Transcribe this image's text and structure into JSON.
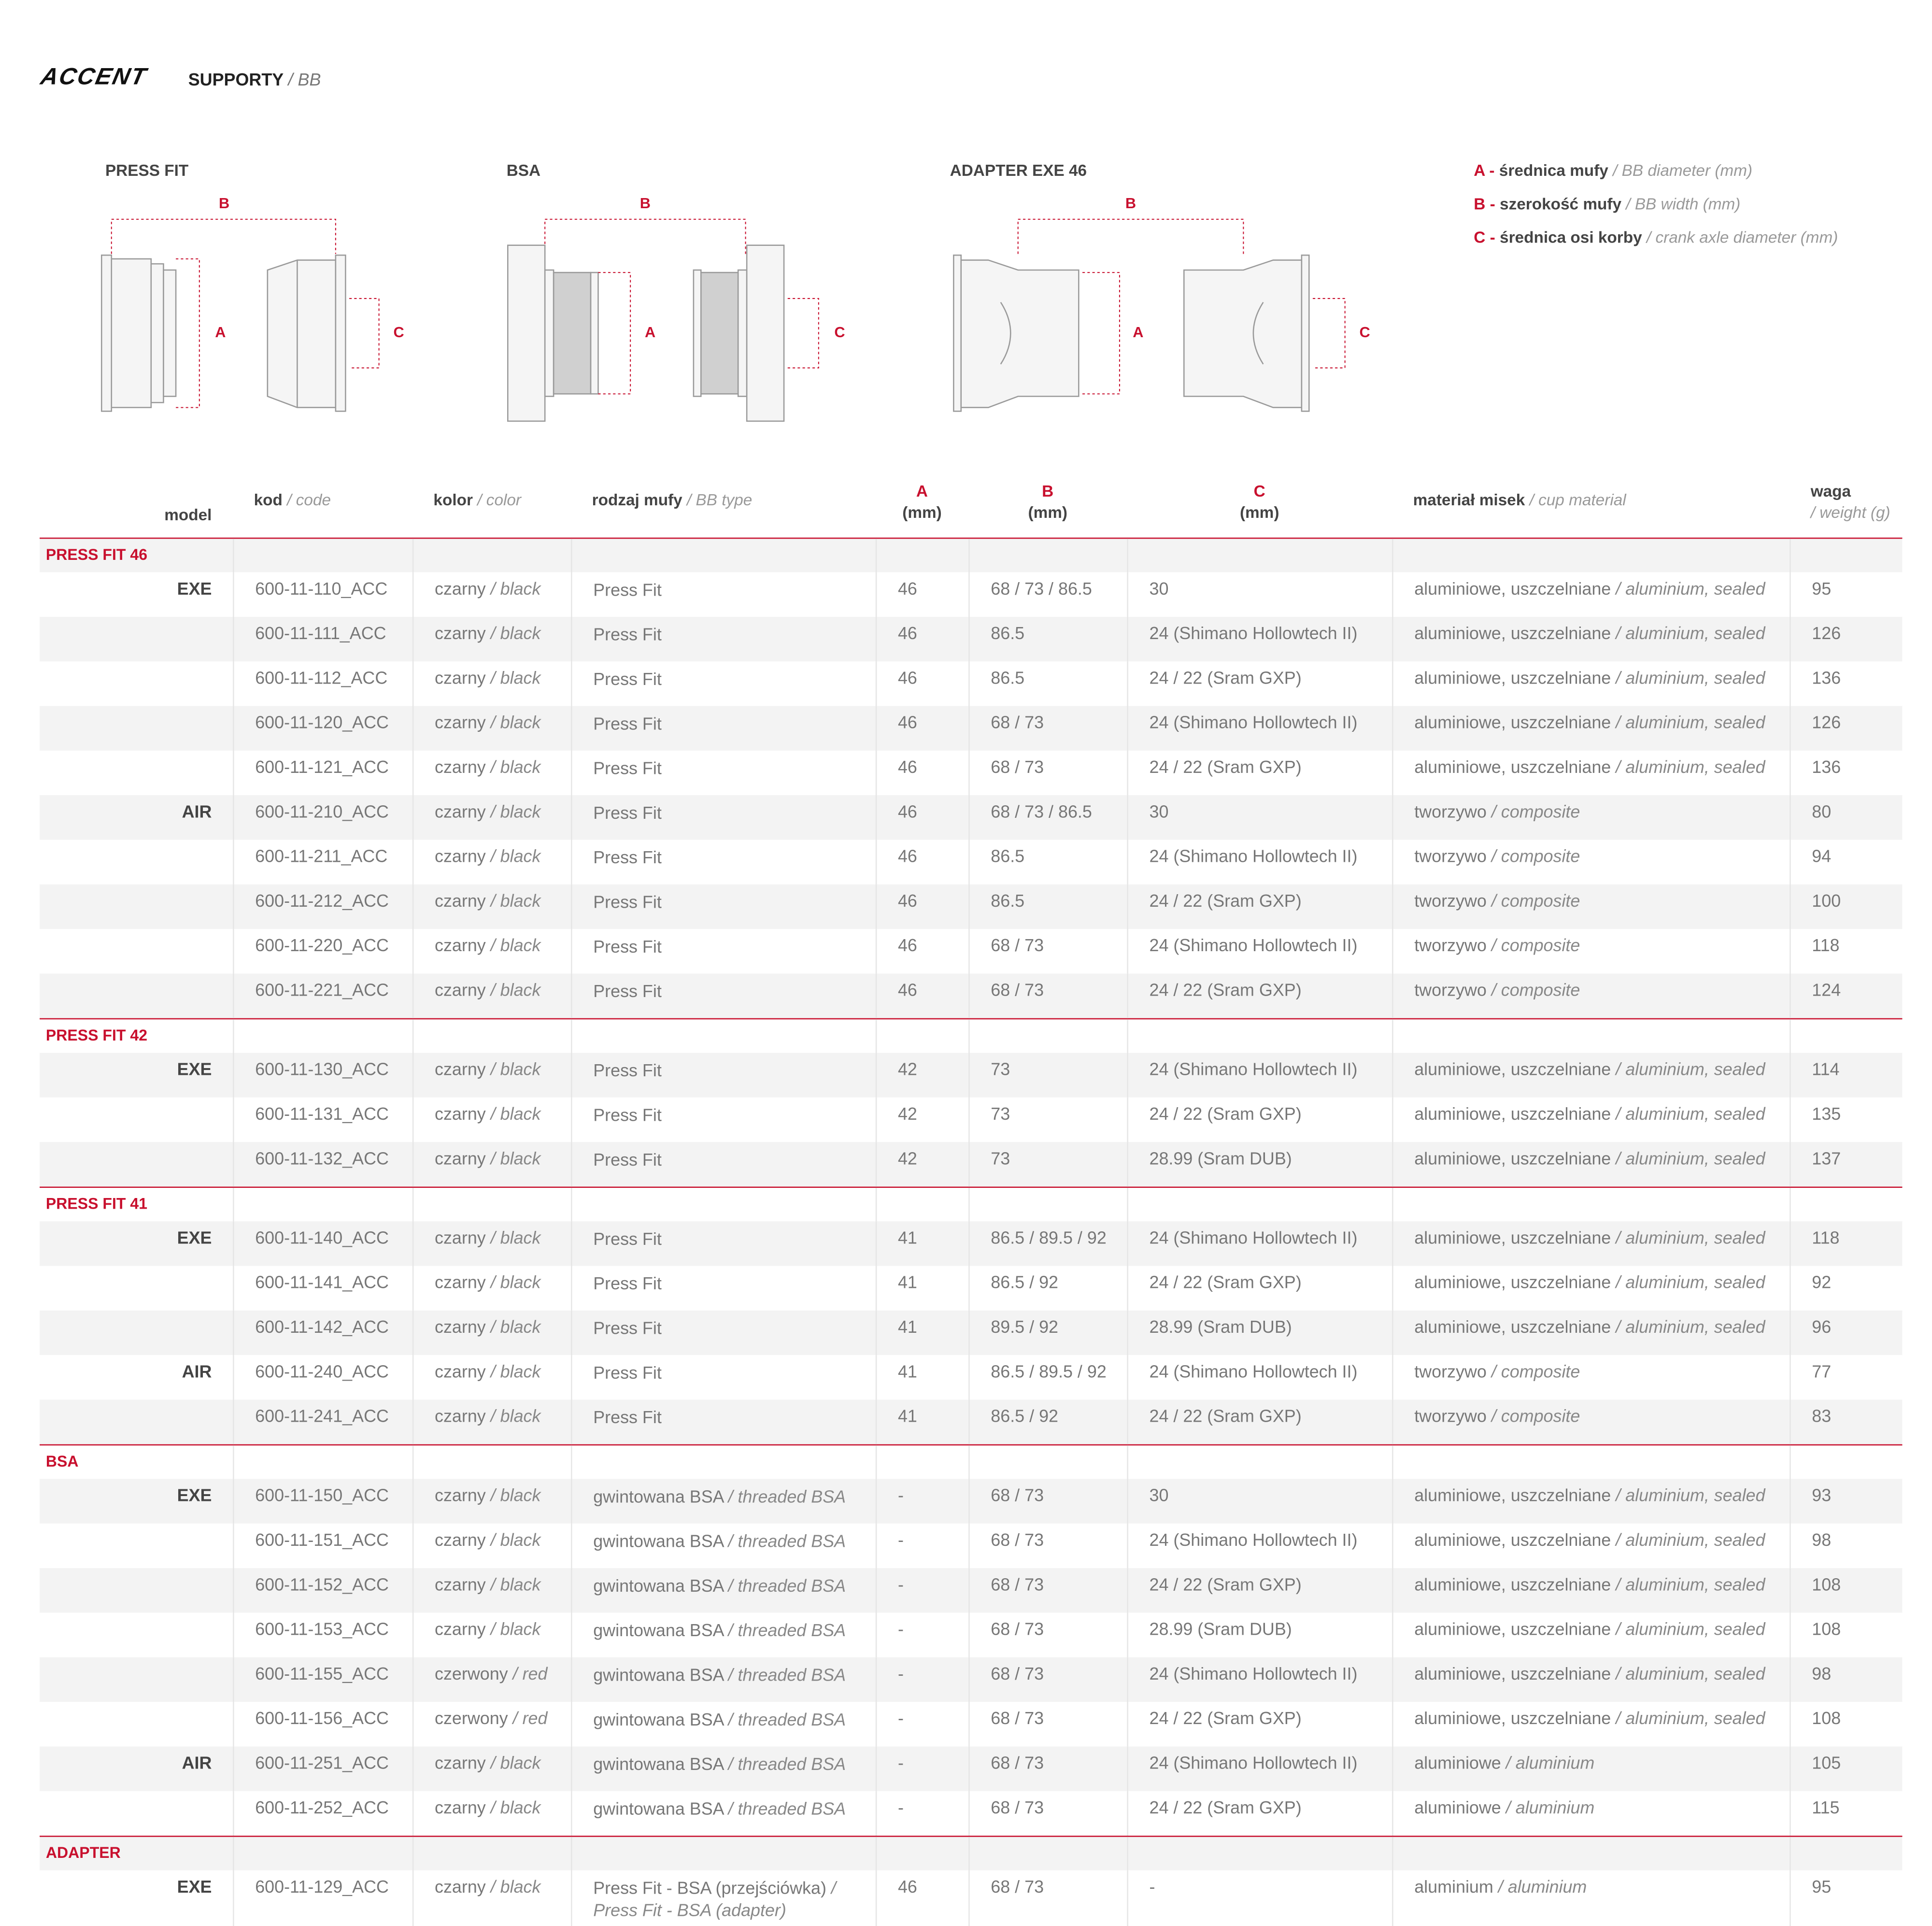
{
  "header": {
    "brand": "ACCENT",
    "title": "SUPPORTY",
    "subtitle": "/ BB"
  },
  "diagrams": [
    {
      "title": "PRESS FIT",
      "b": "B",
      "a": "A",
      "c": "C"
    },
    {
      "title": "BSA",
      "b": "B",
      "a": "A",
      "c": "C"
    },
    {
      "title": "ADAPTER EXE 46",
      "b": "B",
      "a": "A",
      "c": "C"
    }
  ],
  "legend": [
    {
      "key": "A -",
      "pl": "średnica mufy",
      "en": "/ BB diameter (mm)"
    },
    {
      "key": "B -",
      "pl": "szerokość mufy",
      "en": "/ BB width (mm)"
    },
    {
      "key": "C -",
      "pl": "średnica osi korby",
      "en": "/ crank axle diameter (mm)"
    }
  ],
  "table": {
    "columns": [
      {
        "pl": "model"
      },
      {
        "pl": "kod",
        "en": "/ code"
      },
      {
        "pl": "kolor",
        "en": "/ color"
      },
      {
        "pl": "rodzaj mufy",
        "en": "/ BB type"
      },
      {
        "key": "A",
        "unit": "(mm)"
      },
      {
        "key": "B",
        "unit": "(mm)"
      },
      {
        "key": "C",
        "unit": "(mm)"
      },
      {
        "pl": "materiał misek",
        "en": "/ cup material"
      },
      {
        "pl": "waga",
        "en": "/ weight (g)"
      }
    ],
    "sections": [
      {
        "name": "PRESS FIT 46",
        "groups": [
          {
            "model": "EXE",
            "rows": [
              [
                "600-11-110_ACC",
                "czarny",
                "/ black",
                "Press Fit",
                null,
                "46",
                "68 / 73 / 86.5",
                "30",
                "aluminiowe, uszczelniane",
                "/ aluminium, sealed",
                "95"
              ],
              [
                "600-11-111_ACC",
                "czarny",
                "/ black",
                "Press Fit",
                null,
                "46",
                "86.5",
                "24 (Shimano Hollowtech II)",
                "aluminiowe, uszczelniane",
                "/ aluminium, sealed",
                "126"
              ],
              [
                "600-11-112_ACC",
                "czarny",
                "/ black",
                "Press Fit",
                null,
                "46",
                "86.5",
                "24 / 22 (Sram GXP)",
                "aluminiowe, uszczelniane",
                "/ aluminium, sealed",
                "136"
              ],
              [
                "600-11-120_ACC",
                "czarny",
                "/ black",
                "Press Fit",
                null,
                "46",
                "68 / 73",
                "24 (Shimano Hollowtech II)",
                "aluminiowe, uszczelniane",
                "/ aluminium, sealed",
                "126"
              ],
              [
                "600-11-121_ACC",
                "czarny",
                "/ black",
                "Press Fit",
                null,
                "46",
                "68 / 73",
                "24 / 22 (Sram GXP)",
                "aluminiowe, uszczelniane",
                "/ aluminium, sealed",
                "136"
              ]
            ]
          },
          {
            "model": "AIR",
            "rows": [
              [
                "600-11-210_ACC",
                "czarny",
                "/ black",
                "Press Fit",
                null,
                "46",
                "68 / 73 / 86.5",
                "30",
                "tworzywo",
                "/ composite",
                "80"
              ],
              [
                "600-11-211_ACC",
                "czarny",
                "/ black",
                "Press Fit",
                null,
                "46",
                "86.5",
                "24 (Shimano Hollowtech II)",
                "tworzywo",
                "/ composite",
                "94"
              ],
              [
                "600-11-212_ACC",
                "czarny",
                "/ black",
                "Press Fit",
                null,
                "46",
                "86.5",
                "24 / 22 (Sram GXP)",
                "tworzywo",
                "/ composite",
                "100"
              ],
              [
                "600-11-220_ACC",
                "czarny",
                "/ black",
                "Press Fit",
                null,
                "46",
                "68 / 73",
                "24 (Shimano Hollowtech II)",
                "tworzywo",
                "/ composite",
                "118"
              ],
              [
                "600-11-221_ACC",
                "czarny",
                "/ black",
                "Press Fit",
                null,
                "46",
                "68 / 73",
                "24 / 22 (Sram GXP)",
                "tworzywo",
                "/ composite",
                "124"
              ]
            ]
          }
        ]
      },
      {
        "name": "PRESS FIT 42",
        "groups": [
          {
            "model": "EXE",
            "rows": [
              [
                "600-11-130_ACC",
                "czarny",
                "/ black",
                "Press Fit",
                null,
                "42",
                "73",
                "24 (Shimano Hollowtech II)",
                "aluminiowe, uszczelniane",
                "/ aluminium, sealed",
                "114"
              ],
              [
                "600-11-131_ACC",
                "czarny",
                "/ black",
                "Press Fit",
                null,
                "42",
                "73",
                "24 / 22 (Sram GXP)",
                "aluminiowe, uszczelniane",
                "/ aluminium, sealed",
                "135"
              ],
              [
                "600-11-132_ACC",
                "czarny",
                "/ black",
                "Press Fit",
                null,
                "42",
                "73",
                "28.99 (Sram DUB)",
                "aluminiowe, uszczelniane",
                "/ aluminium, sealed",
                "137"
              ]
            ]
          }
        ]
      },
      {
        "name": "PRESS FIT 41",
        "groups": [
          {
            "model": "EXE",
            "rows": [
              [
                "600-11-140_ACC",
                "czarny",
                "/ black",
                "Press Fit",
                null,
                "41",
                "86.5 / 89.5 / 92",
                "24 (Shimano Hollowtech II)",
                "aluminiowe, uszczelniane",
                "/ aluminium, sealed",
                "118"
              ],
              [
                "600-11-141_ACC",
                "czarny",
                "/ black",
                "Press Fit",
                null,
                "41",
                "86.5 / 92",
                "24 / 22 (Sram GXP)",
                "aluminiowe, uszczelniane",
                "/ aluminium, sealed",
                "92"
              ],
              [
                "600-11-142_ACC",
                "czarny",
                "/ black",
                "Press Fit",
                null,
                "41",
                "89.5 / 92",
                "28.99 (Sram DUB)",
                "aluminiowe, uszczelniane",
                "/ aluminium, sealed",
                "96"
              ]
            ]
          },
          {
            "model": "AIR",
            "rows": [
              [
                "600-11-240_ACC",
                "czarny",
                "/ black",
                "Press Fit",
                null,
                "41",
                "86.5 / 89.5 / 92",
                "24 (Shimano Hollowtech II)",
                "tworzywo",
                "/ composite",
                "77"
              ],
              [
                "600-11-241_ACC",
                "czarny",
                "/ black",
                "Press Fit",
                null,
                "41",
                "86.5 / 92",
                "24 / 22 (Sram GXP)",
                "tworzywo",
                "/ composite",
                "83"
              ]
            ]
          }
        ]
      },
      {
        "name": "BSA",
        "groups": [
          {
            "model": "EXE",
            "rows": [
              [
                "600-11-150_ACC",
                "czarny",
                "/ black",
                "gwintowana BSA",
                "/ threaded BSA",
                "-",
                "68 / 73",
                "30",
                "aluminiowe, uszczelniane",
                "/ aluminium, sealed",
                "93"
              ],
              [
                "600-11-151_ACC",
                "czarny",
                "/ black",
                "gwintowana BSA",
                "/ threaded BSA",
                "-",
                "68 / 73",
                "24 (Shimano Hollowtech II)",
                "aluminiowe, uszczelniane",
                "/ aluminium, sealed",
                "98"
              ],
              [
                "600-11-152_ACC",
                "czarny",
                "/ black",
                "gwintowana BSA",
                "/ threaded BSA",
                "-",
                "68 / 73",
                "24 / 22 (Sram GXP)",
                "aluminiowe, uszczelniane",
                "/ aluminium, sealed",
                "108"
              ],
              [
                "600-11-153_ACC",
                "czarny",
                "/ black",
                "gwintowana BSA",
                "/ threaded BSA",
                "-",
                "68 / 73",
                "28.99 (Sram DUB)",
                "aluminiowe, uszczelniane",
                "/ aluminium, sealed",
                "108"
              ],
              [
                "600-11-155_ACC",
                "czerwony",
                "/ red",
                "gwintowana BSA",
                "/ threaded BSA",
                "-",
                "68 / 73",
                "24 (Shimano Hollowtech II)",
                "aluminiowe, uszczelniane",
                "/ aluminium, sealed",
                "98"
              ],
              [
                "600-11-156_ACC",
                "czerwony",
                "/ red",
                "gwintowana BSA",
                "/ threaded BSA",
                "-",
                "68 / 73",
                "24 / 22 (Sram GXP)",
                "aluminiowe, uszczelniane",
                "/ aluminium, sealed",
                "108"
              ]
            ]
          },
          {
            "model": "AIR",
            "rows": [
              [
                "600-11-251_ACC",
                "czarny",
                "/ black",
                "gwintowana BSA",
                "/ threaded BSA",
                "-",
                "68 / 73",
                "24 (Shimano Hollowtech II)",
                "aluminiowe",
                "/ aluminium",
                "105"
              ],
              [
                "600-11-252_ACC",
                "czarny",
                "/ black",
                "gwintowana BSA",
                "/ threaded BSA",
                "-",
                "68 / 73",
                "24 / 22 (Sram GXP)",
                "aluminiowe",
                "/ aluminium",
                "115"
              ]
            ]
          }
        ]
      },
      {
        "name": "ADAPTER",
        "groups": [
          {
            "model": "EXE",
            "rows": [
              [
                "600-11-129_ACC",
                "czarny",
                "/ black",
                "Press Fit - BSA (przejściówka)",
                "/ Press Fit - BSA (adapter)",
                "46",
                "68 / 73",
                "-",
                "aluminium",
                "/ aluminium",
                "95"
              ]
            ]
          }
        ]
      }
    ]
  }
}
